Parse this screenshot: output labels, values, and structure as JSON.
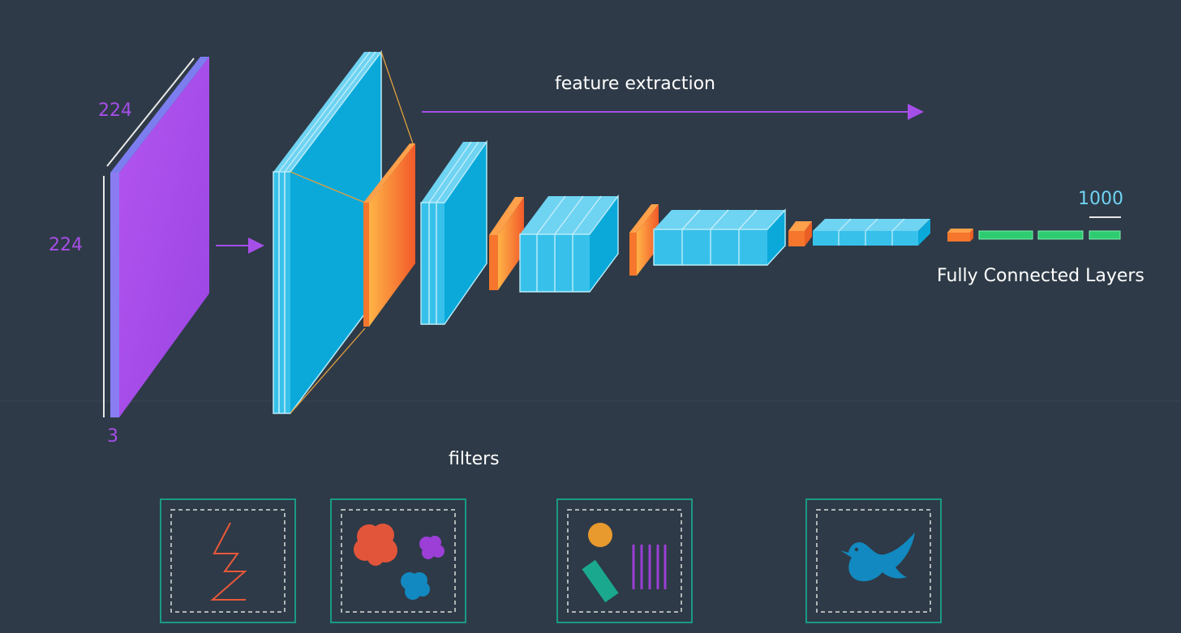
{
  "labels": {
    "input_width": "224",
    "input_height": "224",
    "input_depth": "3",
    "feature_extraction": "feature extraction",
    "fc_size": "1000",
    "fully_connected": "Fully Connected Layers",
    "filters": "filters"
  },
  "filter_panels": [
    {
      "icon": "zigzag-edge-icon"
    },
    {
      "icon": "color-blobs-icon"
    },
    {
      "icon": "shapes-and-lines-icon"
    },
    {
      "icon": "bird-icon"
    }
  ],
  "colors": {
    "background": "#2e3a47",
    "input_volume": "#a64ee8",
    "conv_volume": "#0bb3e4",
    "pool_volume": "#f3812c",
    "fc_layer": "#2ecc71",
    "arrow": "#a64ee8",
    "panel_border": "#1a9a86"
  }
}
